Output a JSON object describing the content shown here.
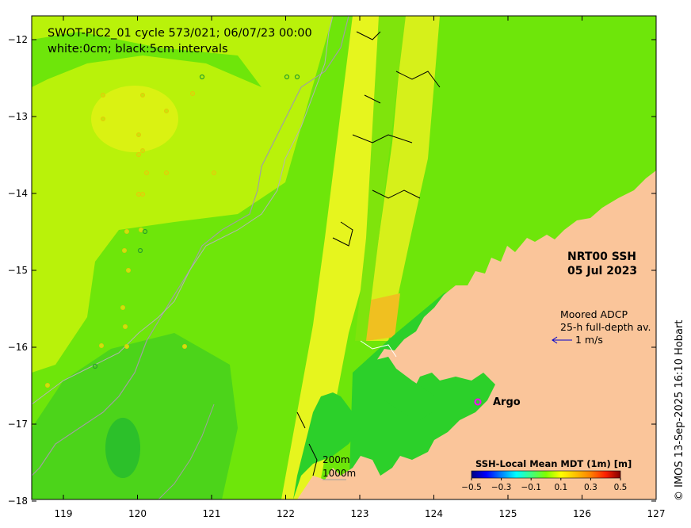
{
  "map": {
    "title": "SWOT-PIC2_01 cycle 573/021; 06/07/23 00:00",
    "subtitle": "white:0cm; black:5cm intervals",
    "product_label": "NRT00 SSH",
    "product_date": "05 Jul 2023",
    "adcp_label_1": "Moored ADCP",
    "adcp_label_2": "25-h full-depth av.",
    "adcp_scale": "1 m/s",
    "argo_label": "Argo",
    "scale_200": "200m",
    "scale_1000": "1000m",
    "credit": "© IMOS 13-Sep-2025 16:10 Hobart",
    "x_ticks": [
      "119",
      "120",
      "121",
      "122",
      "123",
      "124",
      "125",
      "126",
      "127"
    ],
    "y_ticks": [
      "−12",
      "−13",
      "−14",
      "−15",
      "−16",
      "−17",
      "−18"
    ]
  },
  "colorbar": {
    "title": "SSH-Local Mean MDT (1m) [m]",
    "ticks": [
      "−0.5",
      "−0.3",
      "−0.1",
      "0.1",
      "0.3",
      "0.5"
    ],
    "colors": [
      "#000080",
      "#0000ff",
      "#0080ff",
      "#00ffff",
      "#40ff80",
      "#80ff00",
      "#ffff00",
      "#ffc000",
      "#ff8000",
      "#ff2000",
      "#800000"
    ]
  },
  "colors": {
    "land": "#fac59a",
    "ocean_green": "#6ee60a",
    "ocean_yellowgreen": "#b9f20a",
    "ocean_deepgreen": "#2cd02a",
    "swath_yellow": "#e6f51e",
    "argo": "#ff00ff",
    "adcp_arrow": "#0000cc",
    "isobath": "#a0a0a0"
  }
}
